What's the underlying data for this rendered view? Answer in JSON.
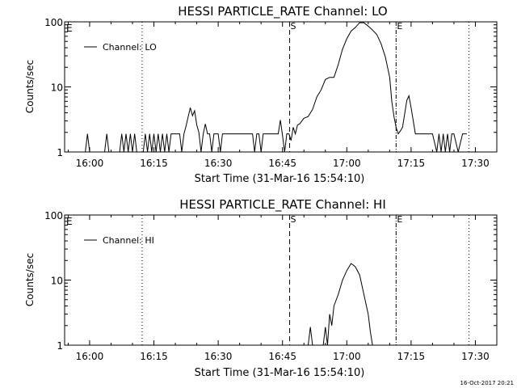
{
  "footer": {
    "timestamp": "16-Oct-2017 20:21"
  },
  "chart_data": [
    {
      "type": "line",
      "title": "HESSI PARTICLE_RATE Channel: LO",
      "xlabel": "Start Time (31-Mar-16 15:54:10)",
      "ylabel": "Counts/sec",
      "y_scale": "log",
      "xlim": [
        "15:54:10",
        "17:35:00"
      ],
      "ylim": [
        1,
        100
      ],
      "x_ticks": [
        "16:00",
        "16:15",
        "16:30",
        "16:45",
        "17:00",
        "17:15",
        "17:30"
      ],
      "y_ticks": [
        "1",
        "10",
        "100"
      ],
      "legend": {
        "position": "top-left",
        "entries": [
          "Channel: LO"
        ]
      },
      "series": [
        {
          "name": "Channel: LO",
          "color": "#000000",
          "x": [
            "15:56:00",
            "15:58:00",
            "15:59:00",
            "15:59:30",
            "16:00:00",
            "16:03:30",
            "16:04:00",
            "16:04:30",
            "16:05:00",
            "16:05:30",
            "16:07:00",
            "16:07:30",
            "16:08:00",
            "16:08:30",
            "16:09:00",
            "16:09:30",
            "16:10:00",
            "16:10:30",
            "16:11:00",
            "16:12:30",
            "16:13:00",
            "16:13:30",
            "16:14:00",
            "16:14:30",
            "16:15:00",
            "16:15:30",
            "16:16:00",
            "16:16:30",
            "16:17:00",
            "16:17:30",
            "16:18:00",
            "16:18:30",
            "16:19:00",
            "16:20:00",
            "16:21:00",
            "16:21:30",
            "16:22:00",
            "16:22:30",
            "16:23:00",
            "16:23:30",
            "16:24:00",
            "16:24:30",
            "16:25:00",
            "16:25:30",
            "16:26:00",
            "16:26:30",
            "16:27:00",
            "16:27:30",
            "16:28:00",
            "16:28:30",
            "16:29:00",
            "16:30:00",
            "16:30:30",
            "16:31:00",
            "16:31:30",
            "16:32:00",
            "16:33:00",
            "16:38:00",
            "16:38:30",
            "16:39:00",
            "16:39:30",
            "16:40:00",
            "16:40:30",
            "16:41:00",
            "16:42:00",
            "16:43:00",
            "16:43:30",
            "16:44:00",
            "16:44:30",
            "16:45:00",
            "16:45:30",
            "16:46:00",
            "16:46:30",
            "16:47:00",
            "16:47:30",
            "16:48:00",
            "16:48:30",
            "16:49:00",
            "16:50:00",
            "16:51:00",
            "16:52:00",
            "16:53:00",
            "16:54:00",
            "16:55:00",
            "16:56:00",
            "16:57:00",
            "16:58:00",
            "16:59:00",
            "17:00:00",
            "17:01:00",
            "17:02:00",
            "17:03:00",
            "17:04:00",
            "17:05:00",
            "17:06:00",
            "17:07:00",
            "17:08:00",
            "17:09:00",
            "17:10:00",
            "17:10:30",
            "17:11:00",
            "17:11:30",
            "17:12:00",
            "17:12:30",
            "17:13:00",
            "17:14:00",
            "17:14:30",
            "17:15:00",
            "17:16:00",
            "17:17:00",
            "17:18:00",
            "17:19:00",
            "17:20:00",
            "17:21:00",
            "17:21:30",
            "17:22:00",
            "17:22:30",
            "17:23:00",
            "17:23:30",
            "17:24:00",
            "17:24:30",
            "17:25:00",
            "17:26:00",
            "17:27:00",
            "17:27:30",
            "17:28:00"
          ],
          "y": [
            1,
            1,
            1,
            1.9,
            1,
            1,
            1.9,
            1,
            1,
            1,
            1,
            1.9,
            1,
            1.9,
            1,
            1.9,
            1,
            1.9,
            1,
            1,
            1.9,
            1,
            1.9,
            1,
            1.9,
            1,
            1.9,
            1,
            1.9,
            1,
            1.9,
            1,
            1.9,
            1.9,
            1.9,
            1,
            1.9,
            2.5,
            3.5,
            4.8,
            3.6,
            4.3,
            2.6,
            2,
            1,
            1.9,
            2.7,
            1.9,
            1.9,
            1,
            1.9,
            1.9,
            1,
            1.9,
            1.9,
            1.9,
            1.9,
            1.9,
            1,
            1.9,
            1.9,
            1,
            1.9,
            1.9,
            1.9,
            1.9,
            1.9,
            1.9,
            3.1,
            1.8,
            1,
            1.9,
            1.9,
            1.5,
            2.4,
            1.9,
            2.6,
            2.7,
            3.3,
            3.5,
            4.5,
            7,
            9,
            13,
            14,
            14,
            22,
            38,
            55,
            72,
            82,
            97,
            97,
            86,
            75,
            64,
            46,
            29,
            14,
            6,
            3.5,
            2.4,
            1.9,
            2.1,
            2.4,
            6.2,
            7.3,
            4.8,
            1.9,
            1.9,
            1.9,
            1.9,
            1.9,
            1,
            1.9,
            1,
            1.9,
            1,
            1.9,
            1,
            1.9,
            1.9,
            1,
            1.9,
            1.9,
            1.9
          ]
        }
      ],
      "markers": [
        {
          "time": "16:12:15",
          "style": "dotted",
          "label": ""
        },
        {
          "time": "16:46:40",
          "style": "dashed",
          "label": "S"
        },
        {
          "time": "17:11:30",
          "style": "dash-dot",
          "label": "E"
        },
        {
          "time": "17:28:30",
          "style": "dotted",
          "label": ""
        }
      ],
      "corner_label": "E"
    },
    {
      "type": "line",
      "title": "HESSI PARTICLE_RATE Channel: HI",
      "xlabel": "Start Time (31-Mar-16 15:54:10)",
      "ylabel": "Counts/sec",
      "y_scale": "log",
      "xlim": [
        "15:54:10",
        "17:35:00"
      ],
      "ylim": [
        1,
        100
      ],
      "x_ticks": [
        "16:00",
        "16:15",
        "16:30",
        "16:45",
        "17:00",
        "17:15",
        "17:30"
      ],
      "y_ticks": [
        "1",
        "10",
        "100"
      ],
      "legend": {
        "position": "top-left",
        "entries": [
          "Channel: HI"
        ]
      },
      "series": [
        {
          "name": "Channel: HI",
          "color": "#000000",
          "x": [
            "16:51:00",
            "16:51:30",
            "16:52:00",
            "16:54:30",
            "16:55:00",
            "16:55:30",
            "16:56:00",
            "16:56:30",
            "16:57:00",
            "16:58:00",
            "16:59:00",
            "17:00:00",
            "17:01:00",
            "17:01:30",
            "17:02:00",
            "17:03:00",
            "17:04:00",
            "17:05:00",
            "17:05:30",
            "17:06:00"
          ],
          "y": [
            1,
            1.9,
            1,
            1,
            1.9,
            1,
            3,
            2,
            4,
            6,
            10,
            14,
            18,
            17,
            16,
            12,
            6,
            3,
            1.6,
            1
          ]
        }
      ],
      "markers": [
        {
          "time": "16:12:15",
          "style": "dotted",
          "label": ""
        },
        {
          "time": "16:46:40",
          "style": "dashed",
          "label": "S"
        },
        {
          "time": "17:11:30",
          "style": "dash-dot",
          "label": "E"
        },
        {
          "time": "17:28:30",
          "style": "dotted",
          "label": ""
        }
      ],
      "corner_label": "E"
    }
  ]
}
